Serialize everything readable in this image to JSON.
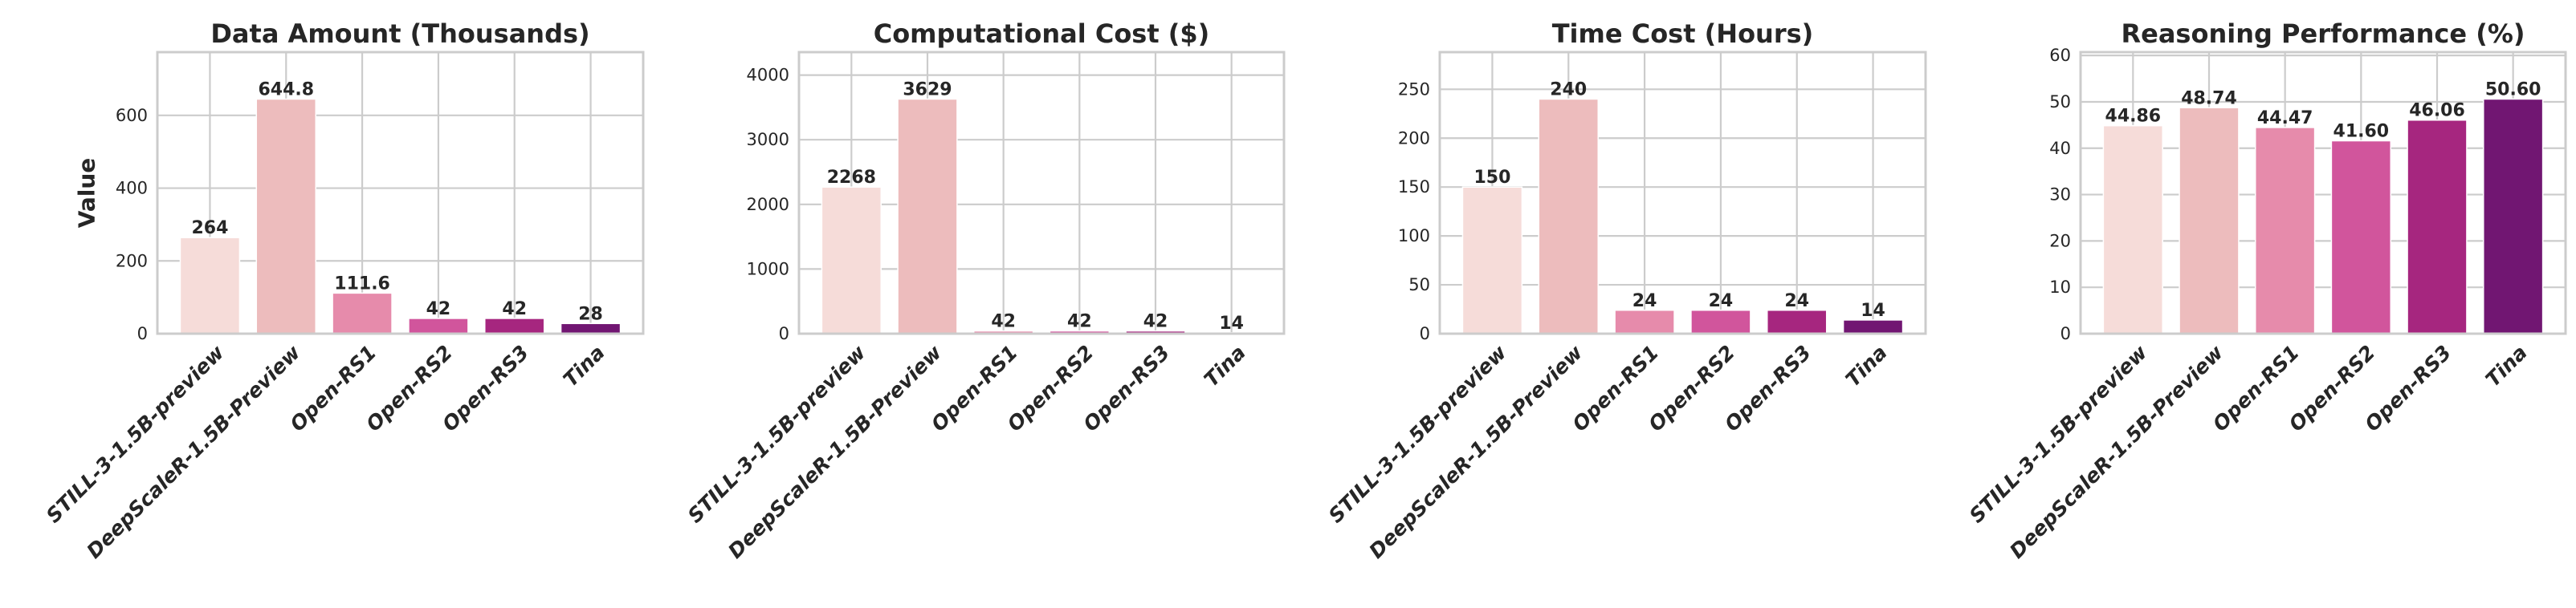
{
  "chart_data": [
    {
      "type": "bar",
      "title": "Data Amount (Thousands)",
      "xlabel": "",
      "ylabel": "Value",
      "categories": [
        "STILL-3-1.5B-preview",
        "DeepScaleR-1.5B-Preview",
        "Open-RS1",
        "Open-RS2",
        "Open-RS3",
        "Tina"
      ],
      "values": [
        264,
        644.8,
        111.6,
        42,
        42,
        28
      ],
      "value_labels": [
        "264",
        "644.8",
        "111.6",
        "42",
        "42",
        "28"
      ],
      "ylim": [
        0,
        773.8
      ],
      "yticks": [
        "0",
        "200",
        "400",
        "600"
      ],
      "grid": true
    },
    {
      "type": "bar",
      "title": "Computational Cost ($)",
      "xlabel": "",
      "ylabel": "",
      "categories": [
        "STILL-3-1.5B-preview",
        "DeepScaleR-1.5B-Preview",
        "Open-RS1",
        "Open-RS2",
        "Open-RS3",
        "Tina"
      ],
      "values": [
        2268,
        3629,
        42,
        42,
        42,
        14
      ],
      "value_labels": [
        "2268",
        "3629",
        "42",
        "42",
        "42",
        "14"
      ],
      "ylim": [
        0,
        4354.8
      ],
      "yticks": [
        "0",
        "1000",
        "2000",
        "3000",
        "4000"
      ],
      "grid": true
    },
    {
      "type": "bar",
      "title": "Time Cost (Hours)",
      "xlabel": "",
      "ylabel": "",
      "categories": [
        "STILL-3-1.5B-preview",
        "DeepScaleR-1.5B-Preview",
        "Open-RS1",
        "Open-RS2",
        "Open-RS3",
        "Tina"
      ],
      "values": [
        150,
        240,
        24,
        24,
        24,
        14
      ],
      "value_labels": [
        "150",
        "240",
        "24",
        "24",
        "24",
        "14"
      ],
      "ylim": [
        0,
        288
      ],
      "yticks": [
        "0",
        "50",
        "100",
        "150",
        "200",
        "250"
      ],
      "grid": true
    },
    {
      "type": "bar",
      "title": "Reasoning Performance (%)",
      "xlabel": "",
      "ylabel": "",
      "categories": [
        "STILL-3-1.5B-preview",
        "DeepScaleR-1.5B-Preview",
        "Open-RS1",
        "Open-RS2",
        "Open-RS3",
        "Tina"
      ],
      "values": [
        44.86,
        48.74,
        44.47,
        41.6,
        46.06,
        50.6
      ],
      "value_labels": [
        "44.86",
        "48.74",
        "44.47",
        "41.60",
        "46.06",
        "50.60"
      ],
      "ylim": [
        0,
        60.72
      ],
      "yticks": [
        "0",
        "10",
        "20",
        "30",
        "40",
        "50",
        "60"
      ],
      "grid": true
    }
  ],
  "colors": [
    "#f6dcd9",
    "#edbcbd",
    "#e68bab",
    "#d1559c",
    "#a6267f",
    "#711672"
  ]
}
